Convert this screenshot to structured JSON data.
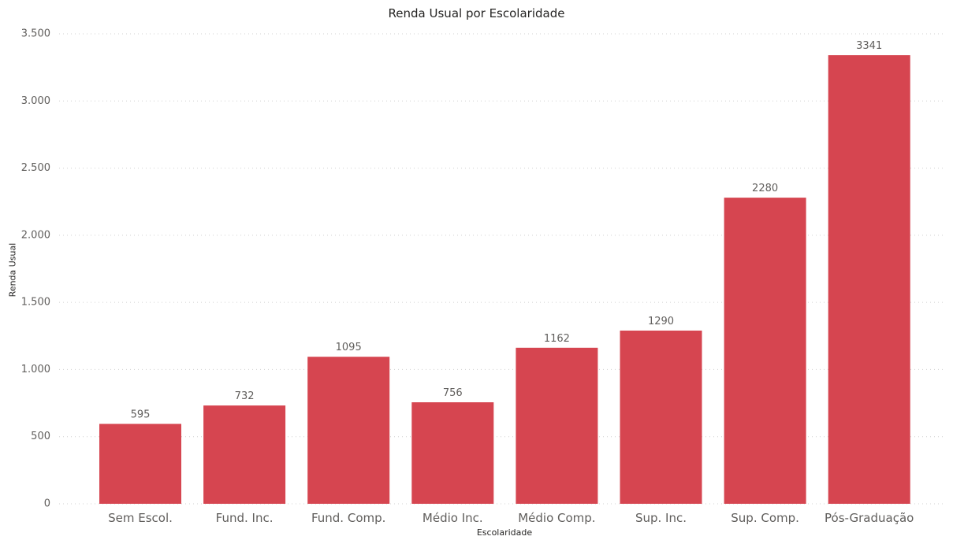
{
  "chart_data": {
    "type": "bar",
    "title": "Renda Usual por Escolaridade",
    "xlabel": "Escolaridade",
    "ylabel": "Renda Usual",
    "categories": [
      "Sem Escol.",
      "Fund. Inc.",
      "Fund. Comp.",
      "Médio Inc.",
      "Médio Comp.",
      "Sup. Inc.",
      "Sup. Comp.",
      "Pós-Graduação"
    ],
    "values": [
      595,
      732,
      1095,
      756,
      1162,
      1290,
      2280,
      3341
    ],
    "data_labels": [
      "595",
      "732",
      "1095",
      "756",
      "1162",
      "1290",
      "2280",
      "3341"
    ],
    "ylim": [
      0,
      3500
    ],
    "yticks": [
      0,
      500,
      1000,
      1500,
      2000,
      2500,
      3000,
      3500
    ],
    "ytick_labels": [
      "0",
      "500",
      "1.000",
      "1.500",
      "2.000",
      "2.500",
      "3.000",
      "3.500"
    ],
    "grid": true,
    "bar_color": "#d64550"
  }
}
